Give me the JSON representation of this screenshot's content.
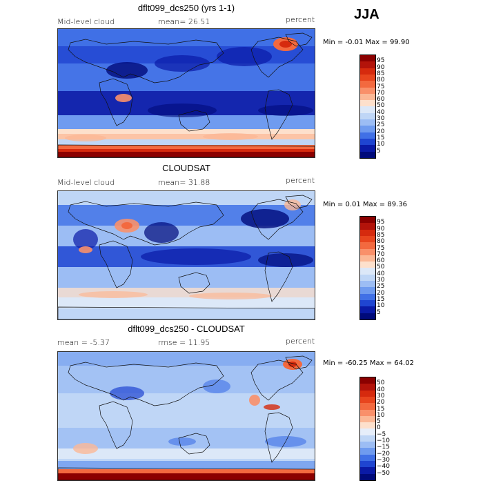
{
  "season": "JJA",
  "panels": [
    {
      "title": "dflt099_dcs250 (yrs 1-1)",
      "left": "Mid-level cloud",
      "center": "mean=  26.51",
      "units": "percent",
      "minmax": "Min =   -0.01  Max =  99.90",
      "colorbar_labels": [
        "95",
        "90",
        "85",
        "80",
        "75",
        "70",
        "60",
        "50",
        "40",
        "30",
        "25",
        "20",
        "15",
        "10",
        "5"
      ],
      "colorbar_colors": [
        "#8b0000",
        "#b3130a",
        "#d62a0e",
        "#e8451e",
        "#f3693f",
        "#f9906a",
        "#fbb896",
        "#fde0cc",
        "#dce8f8",
        "#bfd6f6",
        "#9cbdf4",
        "#6f9bef",
        "#4070e6",
        "#1f45d1",
        "#0a1aa6",
        "#000a7a"
      ],
      "map_mode": "model"
    },
    {
      "title": "CLOUDSAT",
      "left": "Mid-level cloud",
      "center": "mean=  31.88",
      "units": "percent",
      "minmax": "Min =    0.01  Max =  89.36",
      "colorbar_labels": [
        "95",
        "90",
        "85",
        "80",
        "75",
        "70",
        "60",
        "50",
        "40",
        "30",
        "25",
        "20",
        "15",
        "10",
        "5"
      ],
      "colorbar_colors": [
        "#8b0000",
        "#b3130a",
        "#d62a0e",
        "#e8451e",
        "#f3693f",
        "#f9906a",
        "#fbb896",
        "#fde0cc",
        "#dce8f8",
        "#bfd6f6",
        "#9cbdf4",
        "#6f9bef",
        "#4070e6",
        "#1f45d1",
        "#0a1aa6",
        "#000a7a"
      ],
      "map_mode": "obs"
    },
    {
      "title": "dflt099_dcs250 - CLOUDSAT",
      "left": "mean =   -5.37",
      "center": "rmse =   11.95",
      "units": "percent",
      "minmax": "Min = -60.25  Max =  64.02",
      "colorbar_labels": [
        "50",
        "40",
        "30",
        "20",
        "15",
        "10",
        "5",
        "0",
        "−5",
        "−10",
        "−15",
        "−20",
        "−30",
        "−40",
        "−50"
      ],
      "colorbar_colors": [
        "#8b0000",
        "#b3130a",
        "#d62a0e",
        "#e8451e",
        "#f3693f",
        "#f9906a",
        "#fbb896",
        "#fde0cc",
        "#e6eefa",
        "#bfd6f6",
        "#9cbdf4",
        "#6f9bef",
        "#4070e6",
        "#1f45d1",
        "#0a1aa6",
        "#000a7a"
      ],
      "map_mode": "diff"
    }
  ]
}
